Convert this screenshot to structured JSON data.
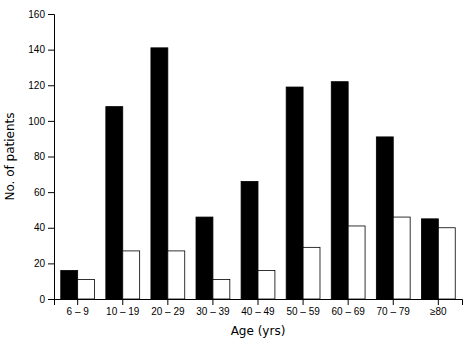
{
  "chart_data": {
    "type": "bar",
    "xlabel": "Age (yrs)",
    "ylabel": "No. of patients",
    "categories": [
      "6 – 9",
      "10 – 19",
      "20 – 29",
      "30 – 39",
      "40 – 49",
      "50 – 59",
      "60 – 69",
      "70 – 79",
      "≥80"
    ],
    "series": [
      {
        "color": "#000000",
        "values": [
          16,
          108,
          141,
          46,
          66,
          119,
          122,
          91,
          45
        ]
      },
      {
        "color": "#ffffff",
        "values": [
          11,
          27,
          27,
          11,
          16,
          29,
          41,
          46,
          40
        ]
      }
    ],
    "ylim": [
      0,
      160
    ],
    "yticks": [
      0,
      20,
      40,
      60,
      80,
      100,
      120,
      140,
      160
    ],
    "grid": false
  }
}
